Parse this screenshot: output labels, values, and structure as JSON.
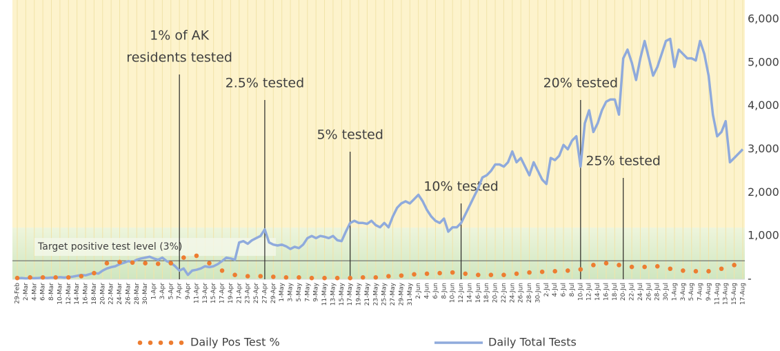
{
  "chart_data": {
    "type": "line",
    "categories": [
      "29-Feb",
      null,
      "2-Mar",
      null,
      "4-Mar",
      null,
      "6-Mar",
      null,
      "8-Mar",
      null,
      "10-Mar",
      null,
      "12-Mar",
      null,
      "14-Mar",
      null,
      "16-Mar",
      null,
      "18-Mar",
      null,
      "20-Mar",
      null,
      "22-Mar",
      null,
      "24-Mar",
      null,
      "26-Mar",
      null,
      "28-Mar",
      null,
      "30-Mar",
      null,
      "1-Apr",
      null,
      "3-Apr",
      null,
      "5-Apr",
      null,
      "7-Apr",
      null,
      "9-Apr",
      null,
      "11-Apr",
      null,
      "13-Apr",
      null,
      "15-Apr",
      null,
      "17-Apr",
      null,
      "19-Apr",
      null,
      "21-Apr",
      null,
      "23-Apr",
      null,
      "25-Apr",
      null,
      "27-Apr",
      null,
      "29-Apr",
      null,
      "1-May",
      null,
      "3-May",
      null,
      "5-May",
      null,
      "7-May",
      null,
      "9-May",
      null,
      "11-May",
      null,
      "13-May",
      null,
      "15-May",
      null,
      "17-May",
      null,
      "19-May",
      null,
      "21-May",
      null,
      "23-May",
      null,
      "25-May",
      null,
      "27-May",
      null,
      "29-May",
      null,
      "31-May",
      null,
      "2-Jun",
      null,
      "4-Jun",
      null,
      "6-Jun",
      null,
      "8-Jun",
      null,
      "10-Jun",
      null,
      "12-Jun",
      null,
      "14-Jun",
      null,
      "16-Jun",
      null,
      "18-Jun",
      null,
      "20-Jun",
      null,
      "22-Jun",
      null,
      "24-Jun",
      null,
      "26-Jun",
      null,
      "28-Jun",
      null,
      "30-Jun",
      null,
      "2-Jul",
      null,
      "4-Jul",
      null,
      "6-Jul",
      null,
      "8-Jul",
      null,
      "10-Jul",
      null,
      "12-Jul",
      null,
      "14-Jul",
      null,
      "16-Jul",
      null,
      "18-Jul",
      null,
      "20-Jul",
      null,
      "22-Jul",
      null,
      "24-Jul",
      null,
      "26-Jul",
      null,
      "28-Jul",
      null,
      "30-Jul",
      null,
      "1-Aug",
      null,
      "3-Aug",
      null,
      "5-Aug",
      null,
      "7-Aug",
      null,
      "9-Aug",
      null,
      "11-Aug",
      null,
      "13-Aug",
      null,
      "15-Aug",
      null,
      "17-Aug"
    ],
    "series": [
      {
        "name": "Daily Pos Test %",
        "color": "#ed7d31",
        "axis": "y2",
        "style": "dots",
        "values": [
          0.2,
          null,
          null,
          0.3,
          null,
          null,
          0.3,
          null,
          null,
          0.3,
          null,
          null,
          0.3,
          null,
          null,
          0.5,
          null,
          null,
          1.0,
          null,
          null,
          2.6,
          null,
          null,
          2.8,
          null,
          null,
          2.7,
          null,
          null,
          2.6,
          null,
          null,
          2.5,
          null,
          null,
          2.6,
          null,
          null,
          3.5,
          null,
          null,
          3.8,
          null,
          null,
          2.6,
          null,
          null,
          1.4,
          null,
          null,
          0.7,
          null,
          null,
          0.5,
          null,
          null,
          0.5,
          null,
          null,
          0.4,
          null,
          null,
          0.3,
          null,
          null,
          0.3,
          null,
          null,
          0.2,
          null,
          null,
          0.2,
          null,
          null,
          0.2,
          null,
          null,
          0.2,
          null,
          null,
          0.3,
          null,
          null,
          0.3,
          null,
          null,
          0.5,
          null,
          null,
          0.6,
          null,
          null,
          0.8,
          null,
          null,
          0.9,
          null,
          null,
          1.0,
          null,
          null,
          1.1,
          null,
          null,
          0.9,
          null,
          null,
          0.7,
          null,
          null,
          0.7,
          null,
          null,
          0.7,
          null,
          null,
          0.9,
          null,
          null,
          1.1,
          null,
          null,
          1.2,
          null,
          null,
          1.3,
          null,
          null,
          1.4,
          null,
          null,
          1.6,
          null,
          null,
          2.3,
          null,
          null,
          2.6,
          null,
          null,
          2.3,
          null,
          null,
          2.0,
          null,
          null,
          2.0,
          null,
          null,
          2.1,
          null,
          null,
          1.7,
          null,
          null,
          1.4,
          null,
          null,
          1.3,
          null,
          null,
          1.3,
          null,
          null,
          1.7,
          null,
          null,
          2.3,
          null,
          null
        ]
      },
      {
        "name": "Daily Total Tests",
        "color": "#8faadc",
        "axis": "y",
        "style": "line",
        "values": [
          20,
          30,
          20,
          30,
          25,
          30,
          40,
          30,
          40,
          35,
          50,
          40,
          50,
          60,
          80,
          100,
          90,
          120,
          150,
          130,
          200,
          250,
          280,
          300,
          350,
          380,
          420,
          400,
          450,
          480,
          500,
          520,
          480,
          450,
          500,
          420,
          380,
          300,
          200,
          250,
          100,
          200,
          220,
          250,
          300,
          280,
          300,
          350,
          420,
          500,
          480,
          450,
          850,
          880,
          820,
          900,
          950,
          1000,
          1150,
          850,
          800,
          780,
          800,
          760,
          700,
          750,
          720,
          800,
          950,
          1000,
          950,
          1000,
          980,
          950,
          1000,
          900,
          880,
          1100,
          1300,
          1350,
          1300,
          1300,
          1280,
          1350,
          1250,
          1200,
          1300,
          1200,
          1450,
          1650,
          1750,
          1800,
          1750,
          1850,
          1950,
          1800,
          1600,
          1450,
          1350,
          1300,
          1400,
          1100,
          1200,
          1200,
          1300,
          1500,
          1700,
          1900,
          2100,
          2350,
          2400,
          2500,
          2650,
          2650,
          2600,
          2700,
          2950,
          2700,
          2800,
          2600,
          2400,
          2700,
          2500,
          2300,
          2200,
          2800,
          2750,
          2850,
          3100,
          3000,
          3200,
          3300,
          2600,
          3600,
          3900,
          3400,
          3600,
          3900,
          4100,
          4150,
          4150,
          3800,
          5100,
          5300,
          5000,
          4600,
          5100,
          5500,
          5100,
          4700,
          4900,
          5200,
          5500,
          5550,
          4900,
          5300,
          5200,
          5100,
          5100,
          5050,
          5500,
          5200,
          4700,
          3800,
          3300,
          3400,
          3650,
          2700,
          2800,
          2900,
          3000
        ]
      }
    ],
    "ylim": [
      0,
      6000
    ],
    "yticks": [
      {
        "value": 0,
        "label": "-"
      },
      {
        "value": 1000,
        "label": "1,000"
      },
      {
        "value": 2000,
        "label": "2,000"
      },
      {
        "value": 3000,
        "label": "3,000"
      },
      {
        "value": 4000,
        "label": "4,000"
      },
      {
        "value": 5000,
        "label": "5,000"
      },
      {
        "value": 6000,
        "label": "6,000"
      }
    ],
    "y2lim": [
      0,
      42
    ],
    "target": {
      "label": "Target positive test level (3%)",
      "value": 3
    },
    "annotations": [
      {
        "category": "7-Apr",
        "lines": [
          "1% of AK",
          "residents tested"
        ]
      },
      {
        "category": "27-Apr",
        "lines": [
          "2.5% tested"
        ]
      },
      {
        "category": "17-May",
        "lines": [
          "5% tested"
        ]
      },
      {
        "category": "12-Jun",
        "lines": [
          "10% tested"
        ]
      },
      {
        "category": "10-Jul",
        "lines": [
          "20% tested"
        ]
      },
      {
        "category": "20-Jul",
        "lines": [
          "25% tested"
        ]
      }
    ],
    "legend": "bottom"
  }
}
